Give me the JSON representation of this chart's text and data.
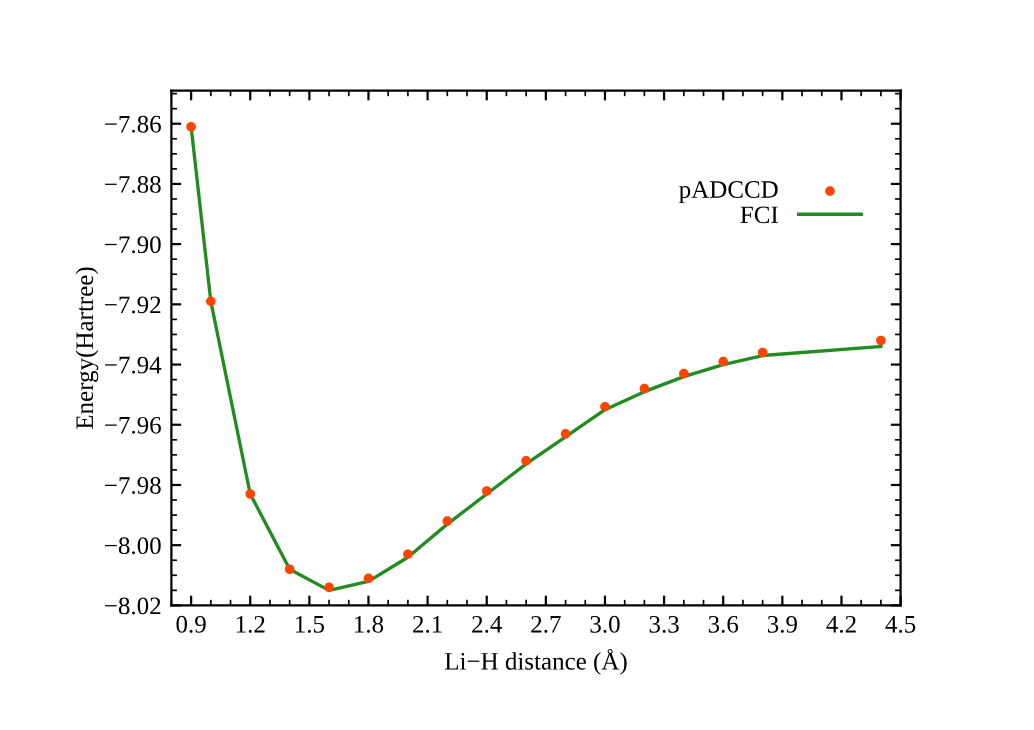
{
  "chart_data": {
    "type": "line",
    "xlabel": "Li−H distance (Å)",
    "ylabel": "Energy(Hartree)",
    "xlim": [
      0.8,
      4.5
    ],
    "xticks": [
      0.9,
      1.2,
      1.5,
      1.8,
      2.1,
      2.4,
      2.7,
      {
        "value": 3,
        "label": "3.0"
      },
      3.3,
      3.6,
      3.9,
      4.2,
      4.5
    ],
    "ylim": [
      -8.02,
      -7.849
    ],
    "yticks": [
      {
        "value": -8.02,
        "label": "−8.02"
      },
      {
        "value": -8,
        "label": "−8.00"
      },
      {
        "value": -7.98,
        "label": "−7.98"
      },
      {
        "value": -7.96,
        "label": "−7.96"
      },
      {
        "value": -7.94,
        "label": "−7.94"
      },
      {
        "value": -7.92,
        "label": "−7.92"
      },
      {
        "value": -7.9,
        "label": "−7.90"
      },
      {
        "value": -7.88,
        "label": "−7.88"
      },
      {
        "value": -7.86,
        "label": "−7.86"
      }
    ],
    "x": [
      0.9,
      1.0,
      1.2,
      1.4,
      1.6,
      1.8,
      2.0,
      2.2,
      2.4,
      2.6,
      2.8,
      3.0,
      3.2,
      3.4,
      3.6,
      3.8,
      4.4
    ],
    "series": [
      {
        "name": "pADCCD",
        "type": "scatter",
        "marker": "circle",
        "color": "#ff4500",
        "values": [
          -7.861,
          -7.919,
          -7.983,
          -8.008,
          -8.014,
          -8.011,
          -8.003,
          -7.992,
          -7.982,
          -7.972,
          -7.963,
          -7.954,
          -7.948,
          -7.943,
          -7.939,
          -7.936,
          -7.932
        ]
      },
      {
        "name": "FCI",
        "line_style": "solid",
        "color": "#228b22",
        "values": [
          -7.861,
          -7.919,
          -7.983,
          -8.008,
          -8.015,
          -8.012,
          -8.004,
          -7.993,
          -7.983,
          -7.973,
          -7.964,
          -7.955,
          -7.949,
          -7.944,
          -7.94,
          -7.937,
          -7.934
        ]
      }
    ],
    "legend": "top right",
    "grid": false
  }
}
